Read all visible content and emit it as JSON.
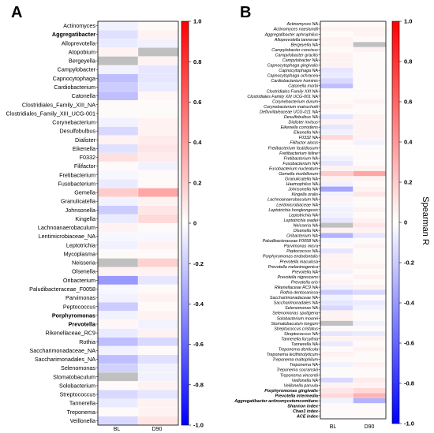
{
  "chart_data": [
    {
      "type": "heatmap",
      "panel_label": "A",
      "columns": [
        "BL",
        "D90"
      ],
      "rows": [
        "Actinomyces",
        "Aggregatibacter",
        "Alloprevotella",
        "Atopobium",
        "Bergeyella",
        "Campylobacter",
        "Capnocytophaga",
        "Cardiobacterium",
        "Catonella",
        "Clostridiales_Family_XIII_NA",
        "Clostridiales_Family_XIII_UCG-001",
        "Corynebacterium",
        "Desulfobulbus",
        "Dialister",
        "Eikenella",
        "F0332",
        "Filifactor",
        "Fretibacterium",
        "Fusobacterium",
        "Gemella",
        "Granulicatella",
        "Johnsonella",
        "Kingella",
        "Lachnoanaerobaculum",
        "Lentimicrobiaceae_NA",
        "Leptotrichia",
        "Mycoplasma",
        "Neisseria",
        "Olsenella",
        "Oribacterium",
        "Paludibacteraceae_F0058",
        "Parvimonas",
        "Peptococcus",
        "Porphyromonas",
        "Prevotella",
        "Rikenellaceae_RC9",
        "Rothia",
        "Saccharimonadaceae_NA",
        "Saccharimonadales_NA",
        "Selenomonas",
        "Stomatobaculum",
        "Solobacterium",
        "Streptococcus",
        "Tannerella",
        "Treponema",
        "Veillonella"
      ],
      "bold_rows": [
        "Aggregatibacter",
        "Porphyromonas",
        "Prevotella"
      ],
      "values": [
        [
          -0.05,
          0.02
        ],
        [
          -0.12,
          0.05
        ],
        [
          -0.08,
          -0.05
        ],
        [
          0.05,
          null
        ],
        [
          null,
          0.05
        ],
        [
          -0.05,
          -0.1
        ],
        [
          -0.25,
          -0.1
        ],
        [
          -0.2,
          -0.08
        ],
        [
          -0.25,
          0.03
        ],
        [
          0.02,
          0.02
        ],
        [
          0.02,
          0.02
        ],
        [
          -0.05,
          0.05
        ],
        [
          -0.15,
          0.05
        ],
        [
          0.05,
          0.08
        ],
        [
          -0.12,
          0.1
        ],
        [
          0.12,
          0.08
        ],
        [
          0.02,
          -0.05
        ],
        [
          -0.03,
          0.02
        ],
        [
          -0.08,
          0.02
        ],
        [
          0.2,
          0.35
        ],
        [
          -0.05,
          0.05
        ],
        [
          -0.2,
          0.1
        ],
        [
          -0.08,
          0.15
        ],
        [
          0.05,
          0.02
        ],
        [
          -0.03,
          -0.03
        ],
        [
          -0.05,
          0.05
        ],
        [
          0.02,
          0.02
        ],
        [
          null,
          0.18
        ],
        [
          0.05,
          0.05
        ],
        [
          -0.4,
          -0.1
        ],
        [
          -0.03,
          0.02
        ],
        [
          -0.05,
          0.05
        ],
        [
          -0.2,
          0.02
        ],
        [
          -0.05,
          0.05
        ],
        [
          0.03,
          -0.05
        ],
        [
          -0.08,
          0.05
        ],
        [
          -0.25,
          -0.15
        ],
        [
          -0.05,
          0.02
        ],
        [
          -0.25,
          -0.12
        ],
        [
          -0.18,
          -0.05
        ],
        [
          null,
          -0.05
        ],
        [
          0.02,
          0.05
        ],
        [
          -0.15,
          -0.1
        ],
        [
          -0.08,
          0.05
        ],
        [
          0.02,
          0.05
        ],
        [
          -0.15,
          0.1
        ]
      ],
      "color_scale": {
        "min": -1.0,
        "max": 1.0,
        "low": "#0000ff",
        "mid": "#ffffff",
        "high": "#ff0000",
        "na": "#c0c0c0"
      },
      "colorbar_ticks": [
        "1.0",
        "0.8",
        "0.6",
        "0.4",
        "0.2",
        "0",
        "-0.2",
        "-0.4",
        "-0.6",
        "-0.8",
        "-1.0"
      ]
    },
    {
      "type": "heatmap",
      "panel_label": "B",
      "columns": [
        "BL",
        "D90"
      ],
      "rows": [
        "Actinomyces NA",
        "Actinomyces naeslundii",
        "Aggregatibacter aphrophilus",
        "Alloprevotella tannerae",
        "Bergeyella NA",
        "Campylobacter concisus",
        "Campylobacter gracilis",
        "Campylobacter NA",
        "Capnocytophaga gingivalis",
        "Capnocytophaga NA",
        "Capnocytophaga ochracea",
        "Cardiobacterium hominis",
        "Catonella morbi",
        "Clostridiales Family XIII NA",
        "Clostridiales Family XIII UCG-001 NA",
        "Corynebacterium durum",
        "Corynebacterium matruchotii",
        "Defluviitaleaceae UCG-011 NA",
        "Desulfobulbus NA",
        "Dialister invisus",
        "Eikenella corrodens",
        "Eikenella NA",
        "F0332 NA",
        "Filifactor alocis",
        "Fretibacterium fastidiosum",
        "Fretibacterium feline",
        "Fretibacterium NA",
        "Fusobacterium NA",
        "Fusobacterium nucleatum",
        "Gemella morbillorum",
        "Granulicatella NA",
        "Haemophilus NA",
        "Johnsonella NA",
        "Kingella oralis",
        "Lachnoanaerobaculum NA",
        "Lentimicrobiaceae NA",
        "Leptotrichia hongkongesis",
        "Leptotrichia NA",
        "Leptotrichia wadei",
        "Neisseria NA",
        "Olsenella NA",
        "Oribacterium NA",
        "Paludibacteraceae F0058 NA",
        "Parvimonas micra",
        "Peptococcus NA",
        "Porphyromonas endodontalis",
        "Prevotella maculosa",
        "Prevotella melaninogenica",
        "Prevotella NA",
        "Prevotella nigrescens",
        "Prevotella oris",
        "Rikenellaceae RC9 NA",
        "Rothia dentocariosa",
        "Saccharimonadaceae NA",
        "Saccharimonadales NA",
        "Selenomonas NA",
        "Selenomonas sputigena",
        "Solobacterium moorei",
        "Stomatobaculum longum",
        "Streptococcus cristatus",
        "Streptococcus NA",
        "Tannerella forsythia",
        "Tannerella NA",
        "Treponema denticola",
        "Treponema lecithinolyticum",
        "Treponema maltophilum",
        "Treponema NA",
        "Treponema socranskii",
        "Treponema vincentii",
        "Veillonella NA",
        "Veillonella parvula",
        "Porphyromonas gingivalis",
        "Prevotella intermedia",
        "Aggregatibacter actinomycetemcomitans",
        "Shannon index",
        "Chao1 index",
        "ACE index"
      ],
      "bold_rows": [
        "Porphyromonas gingivalis",
        "Prevotella intermedia",
        "Aggregatibacter actinomycetemcomitans",
        "Shannon index",
        "Chao1 index",
        "ACE index"
      ],
      "values": [
        [
          0.02,
          0.02
        ],
        [
          0.05,
          0.05
        ],
        [
          0.02,
          0.05
        ],
        [
          0.05,
          0.02
        ],
        [
          0.05,
          null
        ],
        [
          0.02,
          0.05
        ],
        [
          0.05,
          0.02
        ],
        [
          0.05,
          0.02
        ],
        [
          0.05,
          0.02
        ],
        [
          -0.1,
          0.02
        ],
        [
          -0.08,
          0.02
        ],
        [
          -0.15,
          0.02
        ],
        [
          -0.25,
          0.02
        ],
        [
          0.02,
          0.02
        ],
        [
          0.02,
          0.02
        ],
        [
          0.02,
          0.05
        ],
        [
          0.05,
          0.02
        ],
        [
          0.02,
          0.02
        ],
        [
          -0.1,
          0.05
        ],
        [
          0.05,
          0.05
        ],
        [
          -0.1,
          0.05
        ],
        [
          -0.05,
          0.05
        ],
        [
          0.15,
          0.05
        ],
        [
          0.02,
          -0.05
        ],
        [
          0.02,
          0.02
        ],
        [
          0.02,
          0.02
        ],
        [
          -0.05,
          0.02
        ],
        [
          -0.1,
          0.02
        ],
        [
          0.05,
          0.05
        ],
        [
          0.2,
          0.35
        ],
        [
          0.05,
          0.05
        ],
        [
          -0.05,
          0.02
        ],
        [
          -0.35,
          0.05
        ],
        [
          -0.05,
          0.1
        ],
        [
          0.05,
          0.02
        ],
        [
          -0.03,
          0.02
        ],
        [
          -0.05,
          0.05
        ],
        [
          -0.05,
          0.02
        ],
        [
          -0.1,
          0.05
        ],
        [
          null,
          0.1
        ],
        [
          0.05,
          0.05
        ],
        [
          -0.3,
          -0.1
        ],
        [
          -0.03,
          0.02
        ],
        [
          0.02,
          0.05
        ],
        [
          -0.1,
          0.02
        ],
        [
          0.05,
          0.02
        ],
        [
          0.05,
          0.02
        ],
        [
          0.05,
          0.05
        ],
        [
          -0.05,
          0.02
        ],
        [
          0.02,
          0.05
        ],
        [
          0.05,
          0.02
        ],
        [
          -0.05,
          0.05
        ],
        [
          -0.2,
          -0.15
        ],
        [
          -0.05,
          0.02
        ],
        [
          -0.1,
          -0.08
        ],
        [
          -0.15,
          -0.05
        ],
        [
          0.05,
          0.02
        ],
        [
          0.05,
          0.02
        ],
        [
          null,
          -0.05
        ],
        [
          0.02,
          0.02
        ],
        [
          -0.1,
          -0.08
        ],
        [
          0.05,
          0.05
        ],
        [
          -0.08,
          0.02
        ],
        [
          0.02,
          0.05
        ],
        [
          0.05,
          0.02
        ],
        [
          0.02,
          0.02
        ],
        [
          -0.05,
          0.05
        ],
        [
          0.02,
          0.02
        ],
        [
          0.02,
          0.02
        ],
        [
          -0.15,
          0.08
        ],
        [
          0.05,
          0.05
        ],
        [
          0.1,
          0.15
        ],
        [
          0.15,
          0.3
        ],
        [
          -0.05,
          -0.3
        ],
        [
          0.02,
          0.02
        ],
        [
          0.02,
          0.02
        ],
        [
          0.02,
          0.02
        ]
      ],
      "color_scale": {
        "min": -1.0,
        "max": 1.0,
        "low": "#0000ff",
        "mid": "#ffffff",
        "high": "#ff0000",
        "na": "#c0c0c0"
      },
      "colorbar_ticks": [
        "1.0",
        "0.8",
        "0.6",
        "0.4",
        "0.2",
        "0",
        "-0.2",
        "-0.4",
        "-0.6",
        "-0.8",
        "-1.0"
      ],
      "colorbar_title": "Spearman R"
    }
  ]
}
